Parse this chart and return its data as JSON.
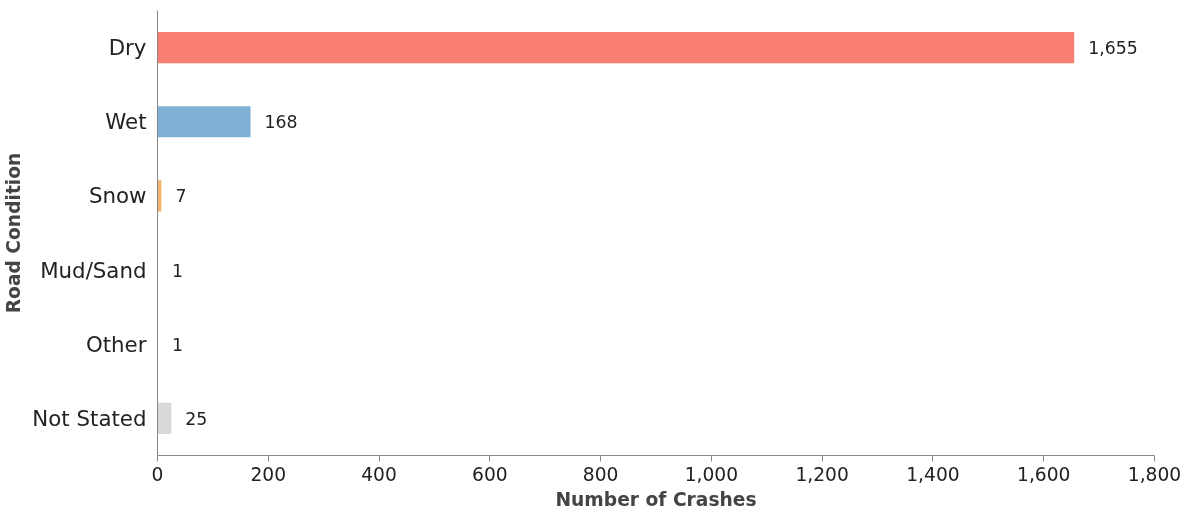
{
  "chart_data": {
    "type": "bar",
    "orientation": "horizontal",
    "xlabel": "Number of Crashes",
    "ylabel": "Road Condition",
    "categories": [
      "Dry",
      "Wet",
      "Snow",
      "Mud/Sand",
      "Other",
      "Not Stated"
    ],
    "values": [
      1655,
      168,
      7,
      1,
      1,
      25
    ],
    "colors": [
      "#fa7f72",
      "#7fb1d5",
      "#f5b46c",
      "#bfbfbf",
      "#bfbfbf",
      "#d9d9d9"
    ],
    "xlim": [
      0,
      1800
    ],
    "xticks": [
      0,
      200,
      400,
      600,
      800,
      {
        "value": 1000,
        "label": "1,000"
      },
      {
        "value": 1200,
        "label": "1,200"
      },
      {
        "value": 1400,
        "label": "1,400"
      },
      {
        "value": 1600,
        "label": "1,600"
      },
      {
        "value": 1800,
        "label": "1,800"
      }
    ],
    "value_labels": [
      "1,655",
      "168",
      "7",
      "1",
      "1",
      "25"
    ],
    "grid": false
  }
}
